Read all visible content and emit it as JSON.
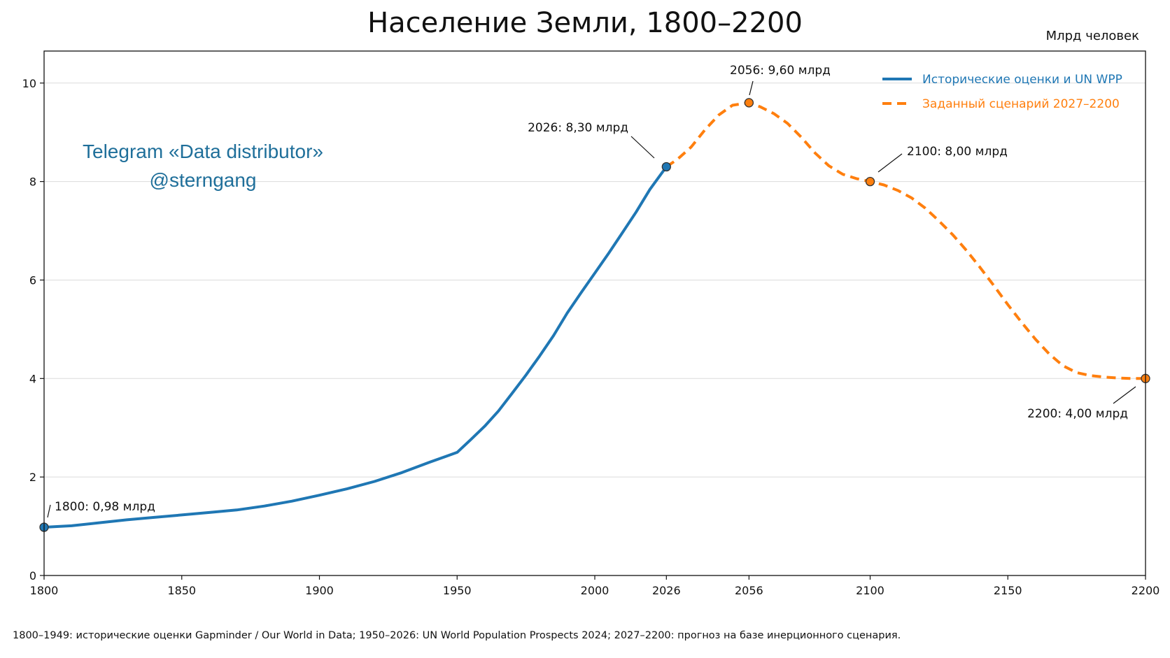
{
  "chart_data": {
    "type": "line",
    "title": "Население Земли, 1800–2200",
    "ylabel": "Млрд человек",
    "xlim": [
      1800,
      2200
    ],
    "ylim": [
      0,
      10.65
    ],
    "x_ticks": [
      1800,
      1850,
      1900,
      1950,
      2000,
      2026,
      2056,
      2100,
      2150,
      2200
    ],
    "y_ticks": [
      0,
      2,
      4,
      6,
      8,
      10
    ],
    "grid": "horizontal",
    "legend_position": "top-right",
    "series": [
      {
        "name": "Исторические оценки и UN WPP",
        "color": "#1f77b4",
        "style": "solid",
        "x": [
          1800,
          1810,
          1820,
          1830,
          1840,
          1850,
          1860,
          1870,
          1880,
          1890,
          1900,
          1910,
          1920,
          1930,
          1940,
          1950,
          1955,
          1960,
          1965,
          1970,
          1975,
          1980,
          1985,
          1990,
          1995,
          2000,
          2005,
          2010,
          2015,
          2020,
          2026
        ],
        "values": [
          0.98,
          1.01,
          1.07,
          1.13,
          1.18,
          1.23,
          1.28,
          1.33,
          1.41,
          1.51,
          1.63,
          1.76,
          1.91,
          2.09,
          2.3,
          2.5,
          2.76,
          3.03,
          3.34,
          3.7,
          4.07,
          4.46,
          4.87,
          5.33,
          5.74,
          6.14,
          6.54,
          6.96,
          7.38,
          7.84,
          8.3
        ]
      },
      {
        "name": "Заданный сценарий 2027–2200",
        "color": "#ff7f0e",
        "style": "dashed",
        "x": [
          2026,
          2030,
          2035,
          2040,
          2045,
          2050,
          2056,
          2060,
          2065,
          2070,
          2075,
          2080,
          2085,
          2090,
          2095,
          2100,
          2105,
          2110,
          2115,
          2120,
          2125,
          2130,
          2135,
          2140,
          2145,
          2150,
          2155,
          2160,
          2165,
          2170,
          2175,
          2180,
          2185,
          2190,
          2195,
          2200
        ],
        "values": [
          8.3,
          8.45,
          8.7,
          9.05,
          9.35,
          9.55,
          9.6,
          9.52,
          9.38,
          9.18,
          8.9,
          8.58,
          8.32,
          8.15,
          8.06,
          8.0,
          7.93,
          7.82,
          7.67,
          7.46,
          7.2,
          6.92,
          6.6,
          6.25,
          5.88,
          5.5,
          5.14,
          4.8,
          4.5,
          4.26,
          4.12,
          4.06,
          4.03,
          4.01,
          4.0,
          4.0
        ]
      }
    ],
    "markers": [
      {
        "x": 1800,
        "y": 0.98,
        "color": "#1f77b4",
        "label": "1800: 0,98 млрд"
      },
      {
        "x": 2026,
        "y": 8.3,
        "color": "#1f77b4",
        "label": "2026: 8,30 млрд"
      },
      {
        "x": 2056,
        "y": 9.6,
        "color": "#ff7f0e",
        "label": "2056: 9,60 млрд"
      },
      {
        "x": 2100,
        "y": 8.0,
        "color": "#ff7f0e",
        "label": "2100: 8,00 млрд"
      },
      {
        "x": 2200,
        "y": 4.0,
        "color": "#ff7f0e",
        "label": "2200: 4,00 млрд"
      }
    ]
  },
  "watermark": {
    "line1": "Telegram «Data distributor»",
    "line2": "@sterngang"
  },
  "source_note": "1800–1949: исторические оценки Gapminder / Our World in Data; 1950–2026: UN World Population Prospects 2024; 2027–2200: прогноз на базе инерционного сценария."
}
